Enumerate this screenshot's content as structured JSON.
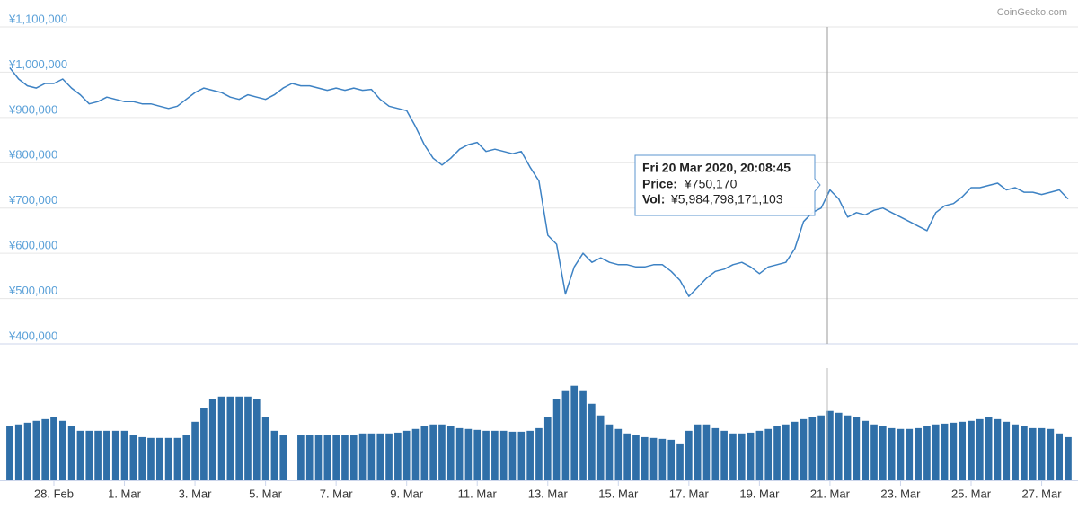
{
  "chart_data": {
    "type": "line",
    "credit": "CoinGecko.com",
    "xlim": [
      0,
      120
    ],
    "xticks": [
      {
        "value": 5,
        "label": "28. Feb"
      },
      {
        "value": 13,
        "label": "1. Mar"
      },
      {
        "value": 21,
        "label": "3. Mar"
      },
      {
        "value": 29,
        "label": "5. Mar"
      },
      {
        "value": 37,
        "label": "7. Mar"
      },
      {
        "value": 45,
        "label": "9. Mar"
      },
      {
        "value": 53,
        "label": "11. Mar"
      },
      {
        "value": 61,
        "label": "13. Mar"
      },
      {
        "value": 69,
        "label": "15. Mar"
      },
      {
        "value": 77,
        "label": "17. Mar"
      },
      {
        "value": 85,
        "label": "19. Mar"
      },
      {
        "value": 93,
        "label": "21. Mar"
      },
      {
        "value": 101,
        "label": "23. Mar"
      },
      {
        "value": 109,
        "label": "25. Mar"
      },
      {
        "value": 117,
        "label": "27. Mar"
      }
    ],
    "ylim": [
      400000,
      1100000
    ],
    "yticks": [
      {
        "value": 400000,
        "label": "¥400,000"
      },
      {
        "value": 500000,
        "label": "¥500,000"
      },
      {
        "value": 600000,
        "label": "¥600,000"
      },
      {
        "value": 700000,
        "label": "¥700,000"
      },
      {
        "value": 800000,
        "label": "¥800,000"
      },
      {
        "value": 900000,
        "label": "¥900,000"
      },
      {
        "value": 1000000,
        "label": "¥1,000,000"
      },
      {
        "value": 1100000,
        "label": "¥1,100,000"
      }
    ],
    "y2lim": [
      0,
      10500000000000.0
    ],
    "grid": true,
    "series": [
      {
        "name": "Price",
        "color": "#3d82c4",
        "values": [
          1010000,
          985000,
          970000,
          965000,
          975000,
          975000,
          985000,
          965000,
          950000,
          930000,
          935000,
          945000,
          940000,
          935000,
          935000,
          930000,
          930000,
          925000,
          920000,
          925000,
          940000,
          955000,
          965000,
          960000,
          955000,
          945000,
          940000,
          950000,
          945000,
          940000,
          950000,
          965000,
          975000,
          970000,
          970000,
          965000,
          960000,
          965000,
          960000,
          965000,
          960000,
          962000,
          940000,
          925000,
          920000,
          915000,
          880000,
          840000,
          810000,
          795000,
          810000,
          830000,
          840000,
          845000,
          825000,
          830000,
          825000,
          820000,
          825000,
          790000,
          760000,
          640000,
          620000,
          510000,
          570000,
          600000,
          580000,
          590000,
          580000,
          575000,
          575000,
          570000,
          570000,
          575000,
          575000,
          560000,
          540000,
          505000,
          525000,
          545000,
          560000,
          565000,
          575000,
          580000,
          570000,
          555000,
          570000,
          575000,
          580000,
          610000,
          670000,
          690000,
          700000,
          740000,
          720000,
          680000,
          690000,
          685000,
          695000,
          700000,
          690000,
          680000,
          670000,
          660000,
          650000,
          690000,
          705000,
          710000,
          725000,
          745000,
          745000,
          750000,
          755000,
          740000,
          745000,
          735000,
          735000,
          730000,
          735000,
          740000,
          720000
        ]
      },
      {
        "name": "Vol",
        "color": "#2f6fa8",
        "axis": "y2",
        "values": [
          4680000000000.0,
          4840000000000.0,
          4990000000000.0,
          5150000000000.0,
          5300000000000.0,
          5460000000000.0,
          5150000000000.0,
          4680000000000.0,
          4290000000000.0,
          4290000000000.0,
          4290000000000.0,
          4290000000000.0,
          4290000000000.0,
          4290000000000.0,
          3900000000000.0,
          3740000000000.0,
          3670000000000.0,
          3670000000000.0,
          3670000000000.0,
          3670000000000.0,
          3900000000000.0,
          5070000000000.0,
          6240000000000.0,
          7020000000000.0,
          7250000000000.0,
          7250000000000.0,
          7250000000000.0,
          7250000000000.0,
          7020000000000.0,
          5460000000000.0,
          4290000000000.0,
          3900000000000.0,
          0,
          3900000000000.0,
          3900000000000.0,
          3900000000000.0,
          3900000000000.0,
          3900000000000.0,
          3900000000000.0,
          3900000000000.0,
          4060000000000.0,
          4060000000000.0,
          4060000000000.0,
          4060000000000.0,
          4130000000000.0,
          4290000000000.0,
          4450000000000.0,
          4680000000000.0,
          4840000000000.0,
          4840000000000.0,
          4680000000000.0,
          4520000000000.0,
          4450000000000.0,
          4370000000000.0,
          4290000000000.0,
          4290000000000.0,
          4290000000000.0,
          4210000000000.0,
          4210000000000.0,
          4290000000000.0,
          4520000000000.0,
          5460000000000.0,
          7020000000000.0,
          7800000000000.0,
          8190000000000.0,
          7800000000000.0,
          6630000000000.0,
          5620000000000.0,
          4840000000000.0,
          4450000000000.0,
          4060000000000.0,
          3900000000000.0,
          3740000000000.0,
          3670000000000.0,
          3590000000000.0,
          3510000000000.0,
          3120000000000.0,
          4290000000000.0,
          4840000000000.0,
          4840000000000.0,
          4520000000000.0,
          4290000000000.0,
          4060000000000.0,
          4060000000000.0,
          4130000000000.0,
          4290000000000.0,
          4450000000000.0,
          4680000000000.0,
          4840000000000.0,
          5070000000000.0,
          5300000000000.0,
          5460000000000.0,
          5620000000000.0,
          6010000000000.0,
          5850000000000.0,
          5620000000000.0,
          5460000000000.0,
          5150000000000.0,
          4840000000000.0,
          4680000000000.0,
          4520000000000.0,
          4450000000000.0,
          4450000000000.0,
          4520000000000.0,
          4680000000000.0,
          4840000000000.0,
          4910000000000.0,
          4990000000000.0,
          5070000000000.0,
          5150000000000.0,
          5300000000000.0,
          5460000000000.0,
          5300000000000.0,
          5070000000000.0,
          4840000000000.0,
          4680000000000.0,
          4520000000000.0,
          4520000000000.0,
          4450000000000.0,
          4060000000000.0,
          3740000000000.0
        ]
      }
    ],
    "tooltip": {
      "date": "Fri 20 Mar 2020, 20:08:45",
      "price_label": "Price:",
      "price": "¥750,170",
      "vol_label": "Vol:",
      "vol": "¥5,984,798,171,103"
    }
  }
}
